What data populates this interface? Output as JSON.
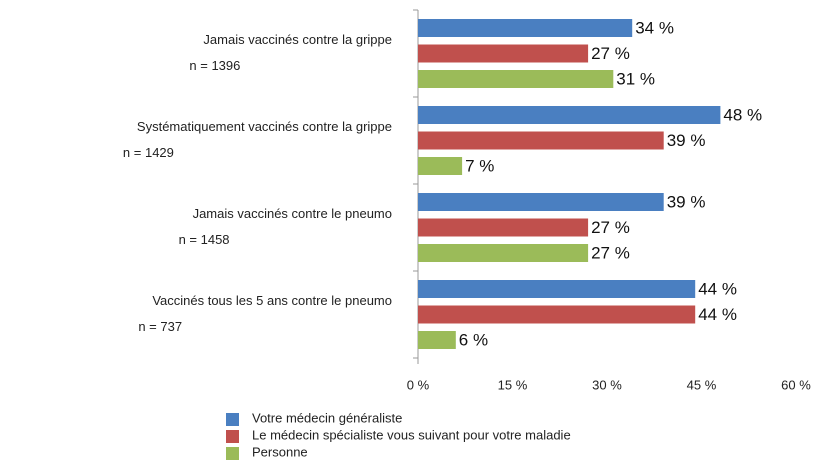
{
  "chart_data": {
    "type": "hbar",
    "categories": [
      "Jamais vaccinés contre la grippe",
      "Systématiquement vaccinés contre la grippe",
      "Jamais vaccinés contre le pneumo",
      "Vaccinés tous les 5 ans contre le pneumo"
    ],
    "category_notes": [
      "n = 1396",
      "n = 1429",
      "n = 1458",
      "n = 737"
    ],
    "series": [
      {
        "name": "Votre médecin généraliste",
        "color": "#4a7fc1",
        "values": [
          34,
          48,
          39,
          44
        ],
        "value_labels": [
          "34 %",
          "48 %",
          "39 %",
          "44 %"
        ]
      },
      {
        "name": "Le médecin spécialiste vous suivant pour votre maladie",
        "color": "#c0504d",
        "values": [
          27,
          39,
          27,
          44
        ],
        "value_labels": [
          "27 %",
          "39 %",
          "27 %",
          "44 %"
        ]
      },
      {
        "name": "Personne",
        "color": "#9bbb59",
        "values": [
          31,
          7,
          27,
          6
        ],
        "value_labels": [
          "31 %",
          "7 %",
          "27 %",
          "6 %"
        ]
      }
    ],
    "xlim": [
      0,
      60
    ],
    "xticks": [
      {
        "value": 0,
        "label": "0 %"
      },
      {
        "value": 15,
        "label": "15 %"
      },
      {
        "value": 30,
        "label": "30 %"
      },
      {
        "value": 45,
        "label": "45 %"
      },
      {
        "value": 60,
        "label": "60 %"
      }
    ],
    "grid": false,
    "legend": "bottom"
  }
}
